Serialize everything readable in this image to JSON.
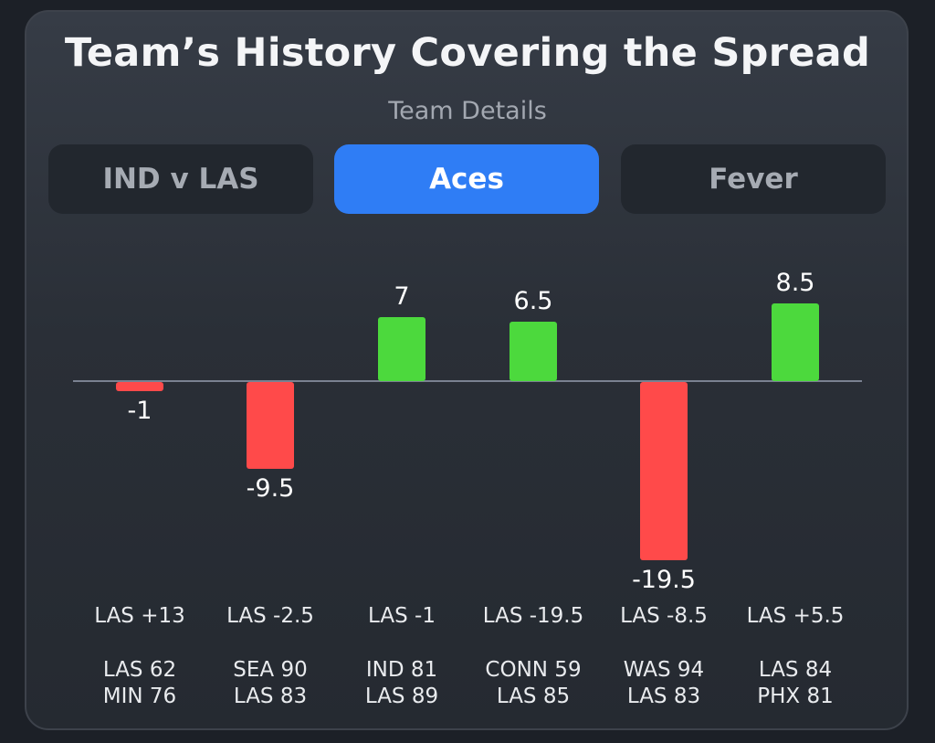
{
  "header": {
    "title": "Team’s History Covering the Spread",
    "subtitle": "Team Details"
  },
  "tabs": [
    {
      "label": "IND v LAS",
      "active": false
    },
    {
      "label": "Aces",
      "active": true
    },
    {
      "label": "Fever",
      "active": false
    }
  ],
  "colors": {
    "positive": "#4cd93d",
    "negative": "#ff4a4a",
    "baseline": "#7a8191",
    "active_tab": "#2f7df5"
  },
  "chart_data": {
    "type": "bar",
    "title": "Team’s History Covering the Spread",
    "ylim": [
      -19.5,
      8.5
    ],
    "categories": [
      "LAS +13",
      "LAS -2.5",
      "LAS -1",
      "LAS -19.5",
      "LAS -8.5",
      "LAS +5.5"
    ],
    "values": [
      -1,
      -9.5,
      7,
      6.5,
      -19.5,
      8.5
    ],
    "value_labels": [
      "-1",
      "-9.5",
      "7",
      "6.5",
      "-19.5",
      "8.5"
    ],
    "scores": [
      [
        "LAS 62",
        "MIN 76"
      ],
      [
        "SEA 90",
        "LAS 83"
      ],
      [
        "IND 81",
        "LAS 89"
      ],
      [
        "CONN 59",
        "LAS 85"
      ],
      [
        "WAS 94",
        "LAS 83"
      ],
      [
        "LAS 84",
        "PHX 81"
      ]
    ]
  }
}
